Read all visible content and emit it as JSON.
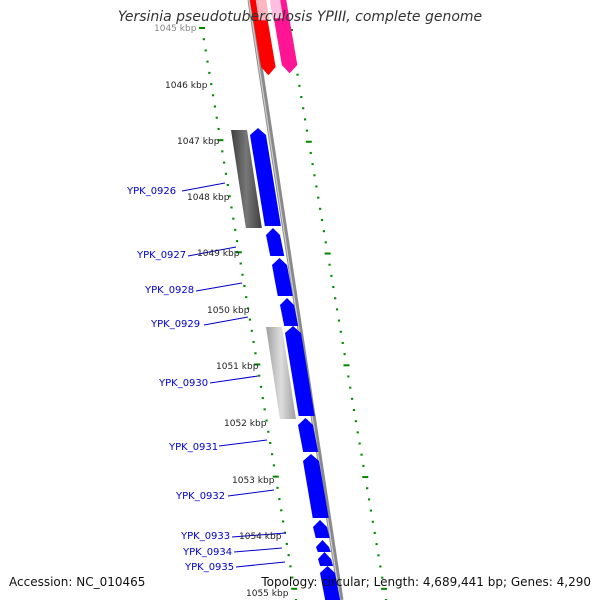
{
  "title": "Yersinia pseudotuberculosis YPIII, complete genome",
  "footer": {
    "accession_label": "Accession:",
    "accession": "NC_010465",
    "topology_label": "Topology:",
    "topology": "circular",
    "length_label": "Length:",
    "length": "4,689,441 bp",
    "genes_label": "Genes:",
    "genes": "4,290"
  },
  "ticks": [
    "1045 kbp",
    "1046 kbp",
    "1047 kbp",
    "1048 kbp",
    "1049 kbp",
    "1050 kbp",
    "1051 kbp",
    "1052 kbp",
    "1053 kbp",
    "1054 kbp",
    "1055 kbp"
  ],
  "genes": [
    "YPK_0926",
    "YPK_0927",
    "YPK_0928",
    "YPK_0929",
    "YPK_0930",
    "YPK_0931",
    "YPK_0932",
    "YPK_0933",
    "YPK_0934",
    "YPK_0935"
  ],
  "colors": {
    "forward_gene": "#0000ff",
    "backbone": "#808080",
    "tick_dots": "#008800",
    "gene_label": "#0000cc",
    "red_feature": "#ff0000",
    "pink_feature": "#ff1493",
    "dark_gray_feature": "#555555",
    "light_gray_feature": "#bbbbbb"
  }
}
